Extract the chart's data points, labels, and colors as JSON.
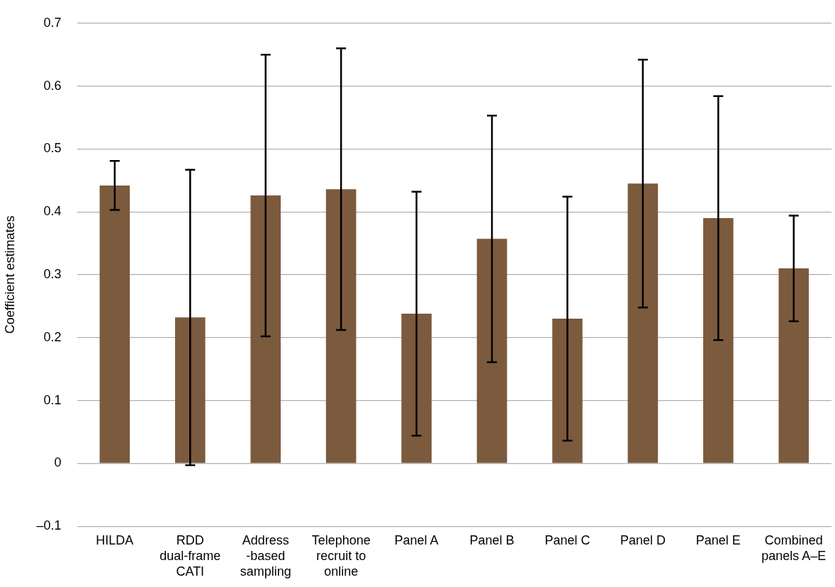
{
  "chart_data": {
    "type": "bar",
    "ylabel": "Coefficient estimates",
    "categories": [
      "HILDA",
      "RDD dual-frame CATI",
      "Address-based sampling",
      "Telephone recruit to online",
      "Panel A",
      "Panel B",
      "Panel C",
      "Panel D",
      "Panel E",
      "Combined panels A–E"
    ],
    "values": [
      0.442,
      0.232,
      0.426,
      0.436,
      0.238,
      0.357,
      0.23,
      0.445,
      0.39,
      0.31
    ],
    "errors": [
      0.039,
      0.235,
      0.224,
      0.224,
      0.194,
      0.196,
      0.194,
      0.197,
      0.194,
      0.084
    ],
    "color": "#7b5a3e",
    "ylim": [
      -0.1,
      0.7
    ],
    "yticks": [
      {
        "value": -0.1,
        "label": "–0.1"
      },
      0,
      0.1,
      0.2,
      0.3,
      0.4,
      0.5,
      0.6,
      0.7
    ],
    "grid": "y",
    "legend": false
  }
}
